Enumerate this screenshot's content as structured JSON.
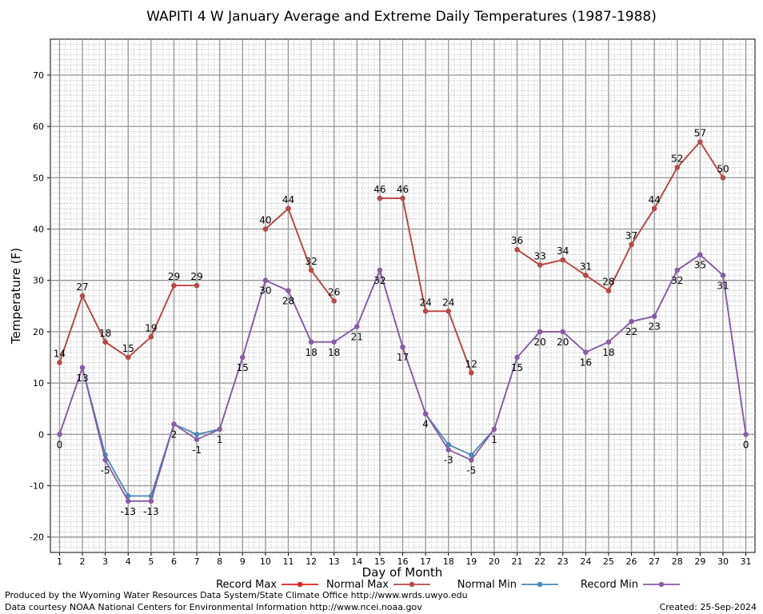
{
  "chart_data": {
    "type": "line",
    "title": "WAPITI 4 W January Average and Extreme Daily Temperatures (1987-1988)",
    "xlabel": "Day of Month",
    "ylabel": "Temperature (F)",
    "xlim": [
      0.6,
      31.4
    ],
    "ylim": [
      -23,
      77
    ],
    "yticks": [
      -20,
      -10,
      0,
      10,
      20,
      30,
      40,
      50,
      60,
      70
    ],
    "x": [
      1,
      2,
      3,
      4,
      5,
      6,
      7,
      8,
      9,
      10,
      11,
      12,
      13,
      14,
      15,
      16,
      17,
      18,
      19,
      20,
      21,
      22,
      23,
      24,
      25,
      26,
      27,
      28,
      29,
      30,
      31
    ],
    "grid": true,
    "legend_position": "bottom",
    "series": [
      {
        "name": "Record Max",
        "color": "#e02020",
        "values": [
          14,
          27,
          18,
          15,
          19,
          29,
          29,
          null,
          null,
          40,
          44,
          32,
          26,
          null,
          46,
          46,
          24,
          24,
          12,
          null,
          36,
          33,
          34,
          31,
          28,
          37,
          44,
          52,
          57,
          50,
          null
        ]
      },
      {
        "name": "Normal Max",
        "color": "#b84848",
        "values": [
          14,
          27,
          18,
          15,
          19,
          29,
          29,
          null,
          null,
          40,
          44,
          32,
          26,
          null,
          46,
          46,
          24,
          24,
          12,
          null,
          36,
          33,
          34,
          31,
          28,
          37,
          44,
          52,
          57,
          50,
          null
        ]
      },
      {
        "name": "Normal Min",
        "color": "#4a86b8",
        "values": [
          0,
          13,
          -4,
          -12,
          -12,
          2,
          0,
          1,
          15,
          30,
          28,
          18,
          18,
          21,
          32,
          17,
          4,
          -2,
          -4,
          1,
          15,
          20,
          20,
          16,
          18,
          22,
          23,
          32,
          35,
          31,
          0
        ]
      },
      {
        "name": "Record Min",
        "color": "#8a5aa6",
        "values": [
          0,
          13,
          -5,
          -13,
          -13,
          2,
          -1,
          1,
          15,
          30,
          28,
          18,
          18,
          21,
          32,
          17,
          4,
          -3,
          -5,
          1,
          15,
          20,
          20,
          16,
          18,
          22,
          23,
          32,
          35,
          31,
          0
        ]
      }
    ],
    "labels_max": [
      14,
      27,
      18,
      15,
      19,
      29,
      29,
      null,
      null,
      40,
      44,
      32,
      26,
      null,
      46,
      46,
      24,
      24,
      12,
      null,
      36,
      33,
      34,
      31,
      28,
      37,
      44,
      52,
      57,
      50,
      null
    ],
    "labels_min": [
      0,
      13,
      -5,
      -13,
      -13,
      2,
      -1,
      1,
      15,
      30,
      28,
      18,
      18,
      21,
      32,
      17,
      4,
      -3,
      -5,
      1,
      15,
      20,
      20,
      16,
      18,
      22,
      23,
      32,
      35,
      31,
      0
    ]
  },
  "footer": {
    "produced_by": "Produced by the Wyoming Water Resources Data System/State Climate Office http://www.wrds.uwyo.edu",
    "courtesy": "Data courtesy NOAA National Centers for Environmental Information http://www.ncei.noaa.gov",
    "created": "Created:  25-Sep-2024"
  }
}
